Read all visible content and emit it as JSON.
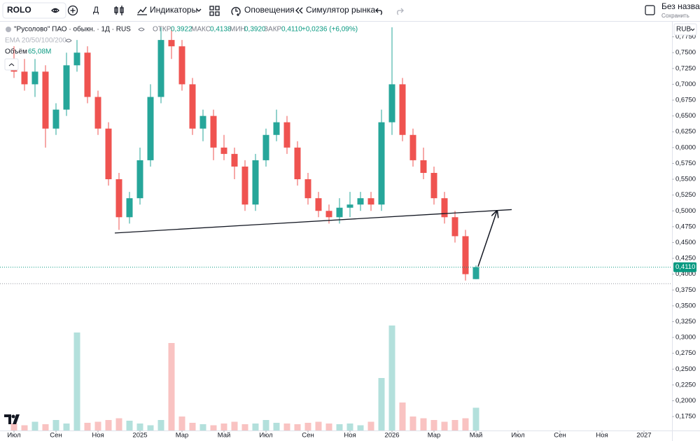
{
  "toolbar": {
    "symbol": "ROLO",
    "interval": "Д",
    "indicators": "Индикаторы",
    "alerts": "Оповещения",
    "replay": "Симулятор рынка",
    "layout_name": "Без названия",
    "save": "Сохранить"
  },
  "legend": {
    "instrument": "\"Русолово\" ПАО · обыкн. · 1Д · RUS",
    "open_label": "ОТКР",
    "open": "0,3922",
    "high_label": "МАКС",
    "high": "0,4138",
    "low_label": "МИН",
    "low": "0,3920",
    "close_label": "ЗАКР",
    "close": "0,4110",
    "change": "+0,0236 (+6,09%)",
    "ema": "EMA 20/50/100/200",
    "volume_label": "Объём",
    "volume": "65,08M",
    "currency": "RUB"
  },
  "chart_data": {
    "type": "candlestick",
    "x": [
      0,
      0.5,
      1,
      1.5,
      2,
      2.5,
      3,
      3.5,
      4,
      4.5,
      5,
      5.5,
      6,
      6.5,
      7,
      7.5,
      8,
      8.5,
      9,
      9.5,
      10,
      10.5,
      11,
      11.5,
      12,
      12.5,
      13,
      13.5,
      14,
      14.5,
      15,
      15.5,
      16,
      16.5,
      17,
      17.5,
      18,
      18.5,
      19,
      19.5,
      20,
      20.5,
      21,
      21.5,
      22
    ],
    "open": [
      0.74,
      0.72,
      0.7,
      0.72,
      0.63,
      0.66,
      0.73,
      0.75,
      0.68,
      0.63,
      0.55,
      0.49,
      0.52,
      0.58,
      0.68,
      0.77,
      0.76,
      0.7,
      0.63,
      0.65,
      0.6,
      0.59,
      0.57,
      0.51,
      0.58,
      0.62,
      0.64,
      0.6,
      0.55,
      0.52,
      0.5,
      0.49,
      0.505,
      0.51,
      0.52,
      0.51,
      0.64,
      0.7,
      0.62,
      0.58,
      0.56,
      0.52,
      0.49,
      0.46,
      0.3922
    ],
    "high": [
      0.76,
      0.74,
      0.74,
      0.73,
      0.67,
      0.75,
      0.77,
      0.76,
      0.69,
      0.64,
      0.56,
      0.53,
      0.6,
      0.7,
      0.79,
      0.79,
      0.77,
      0.71,
      0.66,
      0.66,
      0.62,
      0.6,
      0.58,
      0.59,
      0.63,
      0.66,
      0.65,
      0.61,
      0.56,
      0.53,
      0.51,
      0.52,
      0.53,
      0.53,
      0.53,
      0.66,
      0.79,
      0.71,
      0.63,
      0.6,
      0.57,
      0.53,
      0.5,
      0.47,
      0.4138
    ],
    "low": [
      0.71,
      0.69,
      0.68,
      0.6,
      0.62,
      0.65,
      0.72,
      0.67,
      0.62,
      0.54,
      0.47,
      0.48,
      0.51,
      0.57,
      0.67,
      0.74,
      0.69,
      0.62,
      0.61,
      0.58,
      0.58,
      0.55,
      0.5,
      0.5,
      0.57,
      0.61,
      0.59,
      0.54,
      0.51,
      0.49,
      0.48,
      0.48,
      0.49,
      0.5,
      0.5,
      0.5,
      0.62,
      0.61,
      0.57,
      0.55,
      0.51,
      0.48,
      0.45,
      0.39,
      0.392
    ],
    "close": [
      0.72,
      0.7,
      0.72,
      0.63,
      0.66,
      0.73,
      0.75,
      0.68,
      0.63,
      0.55,
      0.49,
      0.52,
      0.58,
      0.68,
      0.77,
      0.76,
      0.7,
      0.63,
      0.65,
      0.6,
      0.59,
      0.57,
      0.51,
      0.58,
      0.62,
      0.64,
      0.6,
      0.55,
      0.52,
      0.5,
      0.49,
      0.505,
      0.51,
      0.52,
      0.51,
      0.64,
      0.7,
      0.62,
      0.58,
      0.56,
      0.52,
      0.49,
      0.46,
      0.4,
      0.411
    ],
    "volume": [
      20,
      15,
      25,
      18,
      30,
      20,
      280,
      22,
      25,
      30,
      35,
      28,
      20,
      15,
      30,
      250,
      40,
      22,
      18,
      15,
      20,
      25,
      18,
      20,
      30,
      22,
      20,
      18,
      22,
      25,
      20,
      18,
      20,
      15,
      25,
      150,
      300,
      80,
      40,
      35,
      30,
      25,
      30,
      35,
      65.08
    ],
    "up_color": "#26a69a",
    "down_color": "#ef5350",
    "xlim": [
      -0.5,
      31.5
    ],
    "xticks": [
      {
        "value": 0,
        "label": "Июл"
      },
      {
        "value": 2,
        "label": "Сен"
      },
      {
        "value": 4,
        "label": "Ноя"
      },
      {
        "value": 6,
        "label": "2025"
      },
      {
        "value": 8,
        "label": "Мар"
      },
      {
        "value": 10,
        "label": "Май"
      },
      {
        "value": 12,
        "label": "Июл"
      },
      {
        "value": 14,
        "label": "Сен"
      },
      {
        "value": 16,
        "label": "Ноя"
      },
      {
        "value": 18,
        "label": "2026"
      },
      {
        "value": 20,
        "label": "Мар"
      },
      {
        "value": 22,
        "label": "Май"
      },
      {
        "value": 24,
        "label": "Июл"
      },
      {
        "value": 26,
        "label": "Сен"
      },
      {
        "value": 28,
        "label": "Ноя"
      },
      {
        "value": 30,
        "label": "2027"
      }
    ],
    "ylim": [
      0.153,
      0.8
    ],
    "yticks": [
      {
        "value": 0.175,
        "label": "0,1750"
      },
      {
        "value": 0.2,
        "label": "0,2000"
      },
      {
        "value": 0.225,
        "label": "0,2250"
      },
      {
        "value": 0.25,
        "label": "0,2500"
      },
      {
        "value": 0.275,
        "label": "0,2750"
      },
      {
        "value": 0.3,
        "label": "0,3000"
      },
      {
        "value": 0.325,
        "label": "0,3250"
      },
      {
        "value": 0.35,
        "label": "0,3500"
      },
      {
        "value": 0.375,
        "label": "0,3750"
      },
      {
        "value": 0.4,
        "label": "0,4000"
      },
      {
        "value": 0.425,
        "label": "0,4250"
      },
      {
        "value": 0.45,
        "label": "0,4500"
      },
      {
        "value": 0.475,
        "label": "0,4750"
      },
      {
        "value": 0.5,
        "label": "0,5000"
      },
      {
        "value": 0.525,
        "label": "0,5250"
      },
      {
        "value": 0.55,
        "label": "0,5500"
      },
      {
        "value": 0.575,
        "label": "0,5750"
      },
      {
        "value": 0.6,
        "label": "0,6000"
      },
      {
        "value": 0.625,
        "label": "0,6250"
      },
      {
        "value": 0.65,
        "label": "0,6500"
      },
      {
        "value": 0.675,
        "label": "0,6750"
      },
      {
        "value": 0.7,
        "label": "0,7000"
      },
      {
        "value": 0.725,
        "label": "0,7250"
      },
      {
        "value": 0.75,
        "label": "0,7500"
      },
      {
        "value": 0.775,
        "label": "0,7750"
      }
    ],
    "last_price": {
      "value": 0.411,
      "label": "0,4110"
    },
    "low_line": 0.385,
    "trendline": {
      "x": [
        4.8,
        23.7
      ],
      "y": [
        0.465,
        0.502
      ]
    },
    "arrow": {
      "x": [
        22.1,
        23.0
      ],
      "y": [
        0.412,
        0.5
      ]
    }
  }
}
